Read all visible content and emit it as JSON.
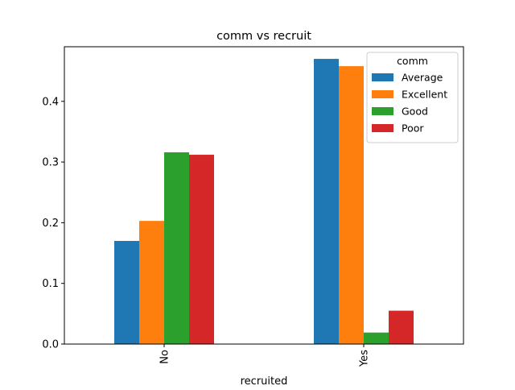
{
  "chart_data": {
    "type": "bar",
    "title": "comm vs recruit",
    "xlabel": "recruited",
    "ylabel": "",
    "categories": [
      "No",
      "Yes"
    ],
    "ylim": [
      0,
      0.49
    ],
    "yticks": [
      0.0,
      0.1,
      0.2,
      0.3,
      0.4
    ],
    "ytick_labels": [
      "0.0",
      "0.1",
      "0.2",
      "0.3",
      "0.4"
    ],
    "grid": false,
    "legend": {
      "title": "comm",
      "position": "top-right"
    },
    "series": [
      {
        "name": "Average",
        "color": "#1f77b4",
        "values": [
          0.17,
          0.47
        ]
      },
      {
        "name": "Excellent",
        "color": "#ff7f0e",
        "values": [
          0.203,
          0.458
        ]
      },
      {
        "name": "Good",
        "color": "#2ca02c",
        "values": [
          0.316,
          0.019
        ]
      },
      {
        "name": "Poor",
        "color": "#d62728",
        "values": [
          0.312,
          0.055
        ]
      }
    ]
  }
}
